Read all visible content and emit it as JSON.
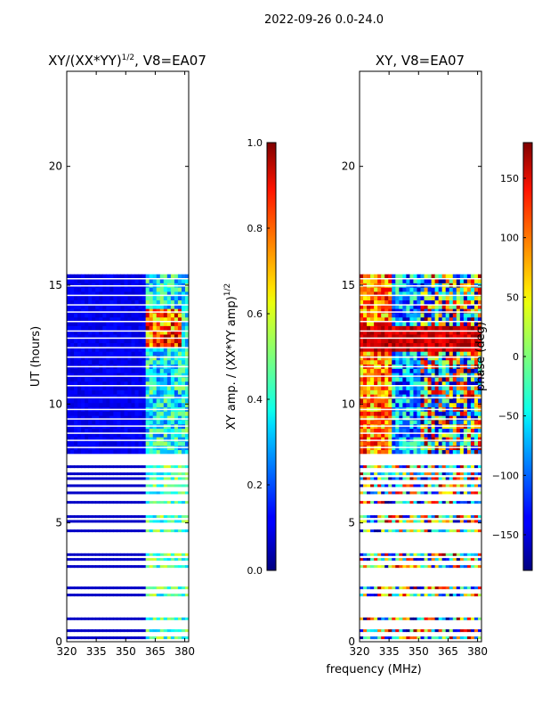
{
  "chart_data": [
    {
      "type": "heatmap",
      "suptitle": "2022-09-26 0.0-24.0",
      "title": "XY/(XX*YY)",
      "title_superscript": "1/2",
      "title_suffix": ", V8=EA07",
      "xlabel": "",
      "ylabel": "UT (hours)",
      "xlim": [
        320,
        382
      ],
      "ylim": [
        0,
        24
      ],
      "xticks": [
        320,
        335,
        350,
        365,
        380
      ],
      "yticks": [
        0,
        5,
        10,
        15,
        20
      ],
      "data_extent_hours": [
        0,
        15.4
      ],
      "colorbar": {
        "label": "XY amp. / (XX*YY amp)",
        "label_superscript": "1/2",
        "range": [
          0.0,
          1.0
        ],
        "ticks": [
          "0.0",
          "0.2",
          "0.4",
          "0.6",
          "0.8",
          "1.0"
        ]
      },
      "colormap": "jet"
    },
    {
      "type": "heatmap",
      "title": "XY, V8=EA07",
      "xlabel": "frequency (MHz)",
      "ylabel": "",
      "xlim": [
        320,
        382
      ],
      "ylim": [
        0,
        24
      ],
      "xticks": [
        320,
        335,
        350,
        365,
        380
      ],
      "yticks": [
        0,
        5,
        10,
        15,
        20
      ],
      "data_extent_hours": [
        0,
        15.4
      ],
      "colorbar": {
        "label": "phase (deg)",
        "range": [
          -180,
          180
        ],
        "ticks": [
          "−150",
          "−100",
          "−50",
          "0",
          "50",
          "100",
          "150"
        ]
      },
      "colormap": "jet"
    }
  ],
  "scan_rows_hours": [
    0.1,
    0.4,
    0.9,
    1.9,
    2.2,
    3.1,
    3.4,
    3.6,
    4.6,
    5.0,
    5.2,
    5.8,
    6.2,
    6.5,
    6.8,
    7.0,
    7.3,
    7.9,
    8.2,
    8.5,
    8.8,
    9.1,
    9.4,
    9.8,
    10.3,
    10.8,
    11.2,
    11.6,
    12.0,
    12.4,
    12.8,
    13.1,
    13.5,
    13.9,
    14.2,
    14.6,
    15.0,
    15.3
  ]
}
